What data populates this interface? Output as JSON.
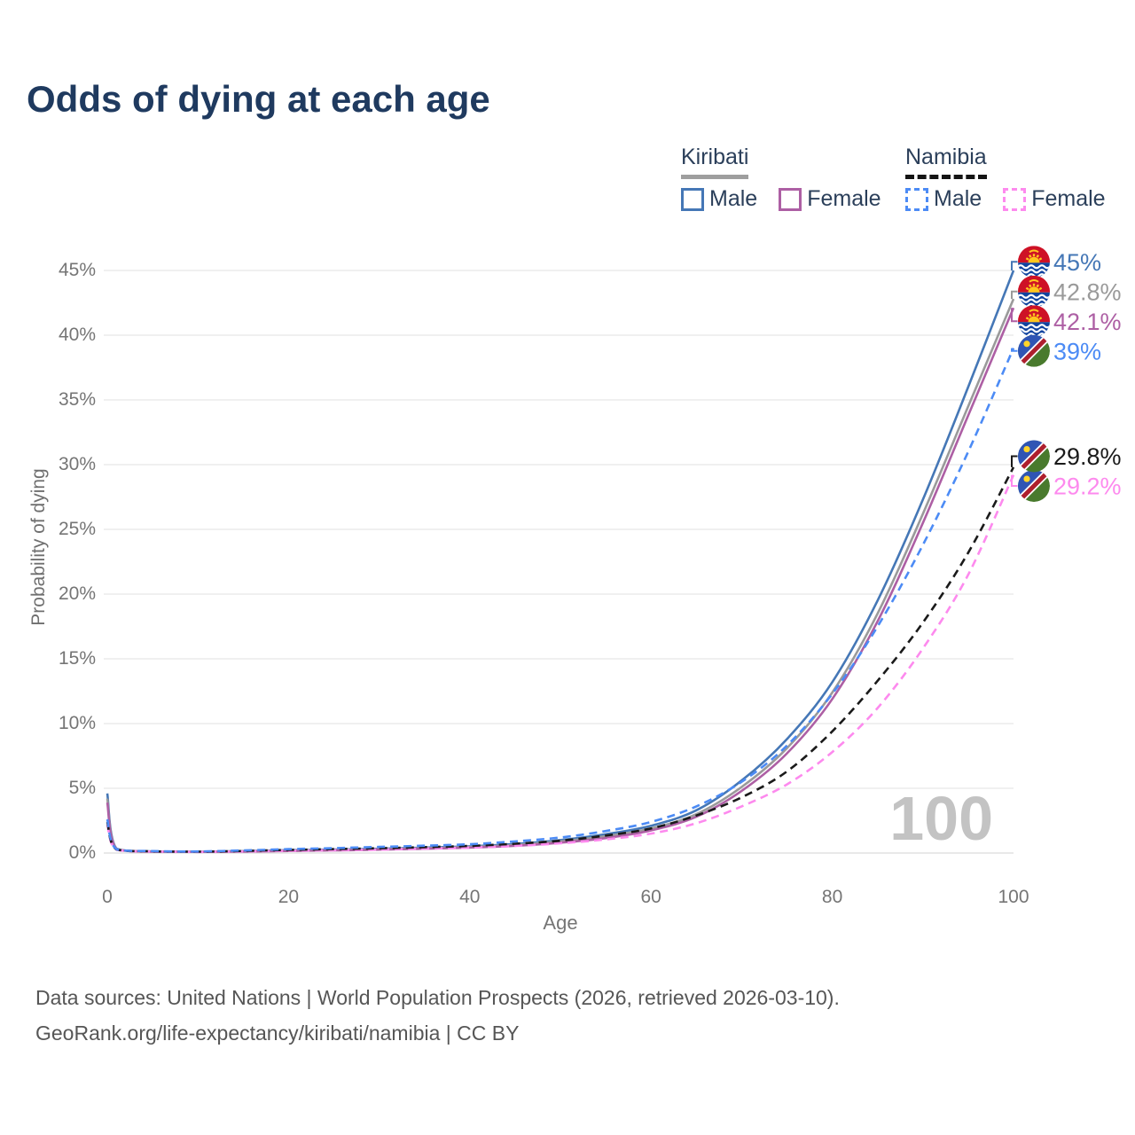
{
  "title": "Odds of dying at each age",
  "watermark_age": "100",
  "legend": {
    "groups": [
      {
        "name": "Kiribati",
        "line_style": "solid",
        "underline_color": "#9e9e9e",
        "items": [
          {
            "label": "Male",
            "color": "#4577b6",
            "dashed": false
          },
          {
            "label": "Female",
            "color": "#ad5fa4",
            "dashed": false
          }
        ]
      },
      {
        "name": "Namibia",
        "line_style": "dashed",
        "underline_color": "#141414",
        "items": [
          {
            "label": "Male",
            "color": "#4c8bf5",
            "dashed": true
          },
          {
            "label": "Female",
            "color": "#fd8aee",
            "dashed": true
          }
        ]
      }
    ]
  },
  "footer": {
    "line1": "Data sources: United Nations | World Population Prospects (2026, retrieved 2026-03-10).",
    "line2": "GeoRank.org/life-expectancy/kiribati/namibia | CC BY"
  },
  "colors": {
    "title_text": "#1f3a5f",
    "legend_text": "#2b3f5a",
    "axis_text": "#757575",
    "gridline": "#e7e7e7",
    "watermark": "#c3c3c3"
  },
  "chart_data": {
    "type": "line",
    "title": "Odds of dying at each age",
    "xlabel": "Age",
    "ylabel": "Probability of dying",
    "xlim": [
      0,
      100
    ],
    "ylim_percent": [
      0,
      45
    ],
    "x_ticks": [
      0,
      20,
      40,
      60,
      80,
      100
    ],
    "y_ticks_percent": [
      0,
      5,
      10,
      15,
      20,
      25,
      30,
      35,
      40,
      45
    ],
    "grid": "horizontal-only",
    "legend_position": "top-right",
    "x": [
      0,
      1,
      5,
      10,
      15,
      20,
      25,
      30,
      35,
      40,
      45,
      50,
      55,
      60,
      65,
      70,
      75,
      80,
      85,
      90,
      95,
      100
    ],
    "series": [
      {
        "name": "Kiribati Male",
        "country": "Kiribati",
        "sex": "Male",
        "flag": "kiribati",
        "color": "#4577b6",
        "dash": "solid",
        "end_label": "45%",
        "end_value_percent": 45.0,
        "values_percent": [
          4.6,
          0.35,
          0.12,
          0.1,
          0.15,
          0.22,
          0.27,
          0.33,
          0.42,
          0.52,
          0.7,
          1.0,
          1.45,
          2.1,
          3.3,
          5.6,
          8.8,
          13.2,
          19.5,
          27.3,
          36.0,
          45.0
        ]
      },
      {
        "name": "Kiribati Both sexes",
        "country": "Kiribati",
        "sex": "Both",
        "flag": "kiribati",
        "color": "#9a9a9a",
        "dash": "solid",
        "end_label": "42.8%",
        "end_value_percent": 42.8,
        "values_percent": [
          4.2,
          0.32,
          0.11,
          0.09,
          0.13,
          0.19,
          0.24,
          0.29,
          0.37,
          0.47,
          0.62,
          0.9,
          1.3,
          1.9,
          3.0,
          5.1,
          8.1,
          12.4,
          18.5,
          26.2,
          34.5,
          42.8
        ]
      },
      {
        "name": "Kiribati Female",
        "country": "Kiribati",
        "sex": "Female",
        "flag": "kiribati",
        "color": "#ad5fa4",
        "dash": "solid",
        "end_label": "42.1%",
        "end_value_percent": 42.1,
        "values_percent": [
          3.9,
          0.3,
          0.1,
          0.08,
          0.11,
          0.16,
          0.2,
          0.26,
          0.33,
          0.42,
          0.56,
          0.8,
          1.15,
          1.75,
          2.8,
          4.8,
          7.7,
          11.9,
          17.9,
          25.5,
          33.8,
          42.1
        ]
      },
      {
        "name": "Namibia Female",
        "country": "Namibia",
        "sex": "Female",
        "flag": "namibia",
        "color": "#fd8aee",
        "dash": "dashed",
        "end_label": "29.2%",
        "end_value_percent": 29.2,
        "values_percent": [
          2.2,
          0.26,
          0.11,
          0.08,
          0.12,
          0.17,
          0.22,
          0.27,
          0.34,
          0.42,
          0.55,
          0.75,
          1.05,
          1.5,
          2.3,
          3.6,
          5.3,
          7.8,
          11.2,
          15.8,
          21.5,
          29.2
        ]
      },
      {
        "name": "Namibia Both sexes",
        "country": "Namibia",
        "sex": "Both",
        "flag": "namibia",
        "color": "#1a1a1a",
        "dash": "dashed",
        "end_label": "29.8%",
        "end_value_percent": 29.8,
        "values_percent": [
          2.4,
          0.28,
          0.13,
          0.1,
          0.16,
          0.24,
          0.3,
          0.37,
          0.45,
          0.55,
          0.72,
          0.95,
          1.35,
          1.9,
          2.9,
          4.3,
          6.3,
          9.4,
          13.3,
          17.8,
          23.2,
          29.8
        ]
      },
      {
        "name": "Namibia Male",
        "country": "Namibia",
        "sex": "Male",
        "flag": "namibia",
        "color": "#4c8bf5",
        "dash": "dashed",
        "end_label": "39%",
        "end_value_percent": 39.0,
        "values_percent": [
          2.6,
          0.3,
          0.15,
          0.12,
          0.2,
          0.3,
          0.38,
          0.47,
          0.57,
          0.68,
          0.9,
          1.2,
          1.7,
          2.4,
          3.6,
          5.5,
          8.3,
          12.3,
          17.5,
          23.8,
          31.0,
          39.0
        ]
      }
    ]
  }
}
